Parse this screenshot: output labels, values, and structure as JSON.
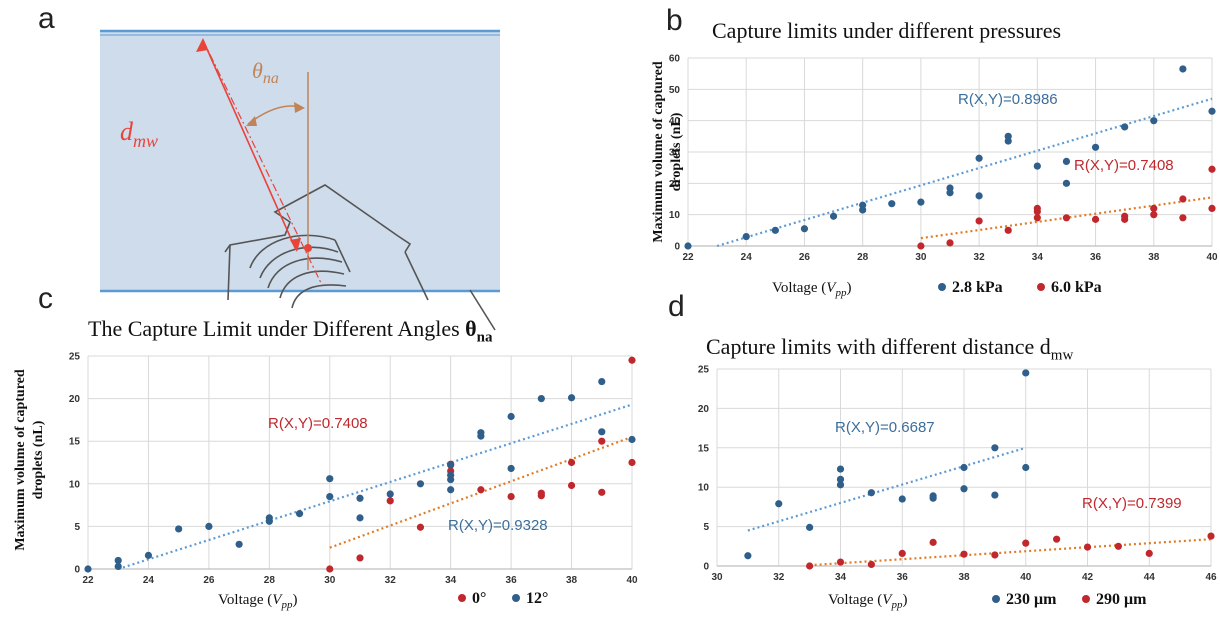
{
  "panels": {
    "a": {
      "letter": "a",
      "distance_label": "d",
      "distance_sub": "mw",
      "angle_label": "θ",
      "angle_sub": "na"
    },
    "b": {
      "letter": "b"
    },
    "c": {
      "letter": "c"
    },
    "d": {
      "letter": "d"
    }
  },
  "colors": {
    "blue": "#2f5f8a",
    "red": "#c0282d",
    "blue_trend": "#5b9bd5",
    "orange_trend": "#e07b26",
    "grid": "#d9d9d9",
    "r_blue": "#3b6e9c",
    "r_red": "#c0282d"
  },
  "chart_data": [
    {
      "id": "b",
      "type": "scatter",
      "title": "Capture limits under different pressures",
      "xlabel": "Voltage (Vpp)",
      "ylabel_lines": [
        "Maximum volume of captured",
        "droplets (nL)"
      ],
      "xlim": [
        22,
        40
      ],
      "ylim": [
        0,
        60
      ],
      "xticks": [
        "22",
        "24",
        "26",
        "28",
        "30",
        "32",
        "34",
        "36",
        "38",
        "40"
      ],
      "yticks": [
        "0",
        "10",
        "20",
        "30",
        "40",
        "50",
        "60"
      ],
      "series": [
        {
          "name": "2.8 kPa",
          "color": "#2f5f8a",
          "points": [
            [
              22,
              0
            ],
            [
              24,
              3
            ],
            [
              25,
              5
            ],
            [
              26,
              5.5
            ],
            [
              27,
              9.5
            ],
            [
              28,
              11.5
            ],
            [
              28,
              13
            ],
            [
              29,
              13.5
            ],
            [
              30,
              14
            ],
            [
              31,
              17
            ],
            [
              31,
              18.5
            ],
            [
              32,
              16
            ],
            [
              32,
              28
            ],
            [
              33,
              33.5
            ],
            [
              33,
              35
            ],
            [
              34,
              25.5
            ],
            [
              35,
              20
            ],
            [
              35,
              27
            ],
            [
              36,
              31.5
            ],
            [
              37,
              38
            ],
            [
              38,
              40
            ],
            [
              39,
              56.5
            ],
            [
              40,
              43
            ]
          ],
          "trend": [
            [
              23,
              0
            ],
            [
              40,
              47
            ]
          ],
          "r_label": "R(X,Y)=0.8986"
        },
        {
          "name": "6.0 kPa",
          "color": "#c0282d",
          "points": [
            [
              30,
              0
            ],
            [
              31,
              1
            ],
            [
              32,
              8
            ],
            [
              33,
              5
            ],
            [
              34,
              9
            ],
            [
              34,
              11
            ],
            [
              34,
              12
            ],
            [
              35,
              9
            ],
            [
              36,
              8.5
            ],
            [
              37,
              8.5
            ],
            [
              37,
              9.5
            ],
            [
              38,
              10
            ],
            [
              38,
              12
            ],
            [
              39,
              9
            ],
            [
              39,
              15
            ],
            [
              40,
              12
            ],
            [
              40,
              24.5
            ]
          ],
          "trend": [
            [
              30,
              2.5
            ],
            [
              40,
              15.5
            ]
          ],
          "r_label": "R(X,Y)=0.7408"
        }
      ]
    },
    {
      "id": "c",
      "type": "scatter",
      "title": "The Capture Limit under Different Angles θna",
      "xlabel": "Voltage (Vpp)",
      "ylabel_lines": [
        "Maximum volume  of captured",
        "droplets (nL)"
      ],
      "xlim": [
        22,
        40
      ],
      "ylim": [
        0,
        25
      ],
      "xticks": [
        "22",
        "24",
        "26",
        "28",
        "30",
        "32",
        "34",
        "36",
        "38",
        "40"
      ],
      "yticks": [
        "0",
        "5",
        "10",
        "15",
        "20",
        "25"
      ],
      "series": [
        {
          "name": "0°",
          "color": "#c0282d",
          "points": [
            [
              30,
              0
            ],
            [
              31,
              1.3
            ],
            [
              32,
              8
            ],
            [
              33,
              4.9
            ],
            [
              34,
              11.5
            ],
            [
              34,
              12.3
            ],
            [
              35,
              9.3
            ],
            [
              36,
              8.5
            ],
            [
              37,
              8.6
            ],
            [
              37,
              8.9
            ],
            [
              38,
              9.8
            ],
            [
              38,
              12.5
            ],
            [
              39,
              9
            ],
            [
              39,
              15
            ],
            [
              40,
              12.5
            ],
            [
              40,
              24.5
            ]
          ],
          "trend": [
            [
              30,
              2.5
            ],
            [
              40,
              15.5
            ]
          ],
          "r_label": "R(X,Y)=0.7408"
        },
        {
          "name": "12°",
          "color": "#2f5f8a",
          "points": [
            [
              22,
              0
            ],
            [
              23,
              0.3
            ],
            [
              23,
              1
            ],
            [
              24,
              1.6
            ],
            [
              25,
              4.7
            ],
            [
              26,
              5
            ],
            [
              27,
              2.9
            ],
            [
              28,
              5.6
            ],
            [
              28,
              6
            ],
            [
              29,
              6.5
            ],
            [
              30,
              8.5
            ],
            [
              30,
              10.6
            ],
            [
              31,
              6
            ],
            [
              31,
              8.3
            ],
            [
              32,
              8.8
            ],
            [
              33,
              10
            ],
            [
              34,
              9.3
            ],
            [
              34,
              10.5
            ],
            [
              34,
              11
            ],
            [
              34,
              12.2
            ],
            [
              35,
              15.6
            ],
            [
              35,
              16
            ],
            [
              36,
              11.8
            ],
            [
              36,
              17.9
            ],
            [
              37,
              20
            ],
            [
              38,
              20.1
            ],
            [
              39,
              16.1
            ],
            [
              39,
              22
            ],
            [
              40,
              15.2
            ]
          ],
          "trend": [
            [
              23,
              0
            ],
            [
              40,
              19.3
            ]
          ],
          "r_label": "R(X,Y)=0.9328"
        }
      ]
    },
    {
      "id": "d",
      "type": "scatter",
      "title": "Capture limits with different distance dmw",
      "xlabel": "Voltage (Vpp)",
      "ylabel_lines": [],
      "xlim": [
        30,
        46
      ],
      "ylim": [
        0,
        25
      ],
      "xticks": [
        "30",
        "32",
        "34",
        "36",
        "38",
        "40",
        "42",
        "44",
        "46"
      ],
      "yticks": [
        "0",
        "5",
        "10",
        "15",
        "20",
        "25"
      ],
      "series": [
        {
          "name": "230 μm",
          "color": "#2f5f8a",
          "points": [
            [
              31,
              1.3
            ],
            [
              32,
              7.9
            ],
            [
              33,
              4.9
            ],
            [
              34,
              10.3
            ],
            [
              34,
              11
            ],
            [
              34,
              12.3
            ],
            [
              35,
              9.3
            ],
            [
              36,
              8.5
            ],
            [
              37,
              8.6
            ],
            [
              37,
              8.9
            ],
            [
              38,
              9.8
            ],
            [
              38,
              12.5
            ],
            [
              39,
              9
            ],
            [
              39,
              15
            ],
            [
              40,
              12.5
            ],
            [
              40,
              24.5
            ]
          ],
          "trend": [
            [
              31,
              4.5
            ],
            [
              40,
              15
            ]
          ],
          "r_label": "R(X,Y)=0.6687"
        },
        {
          "name": "290 μm",
          "color": "#c0282d",
          "points": [
            [
              33,
              0
            ],
            [
              34,
              0.5
            ],
            [
              35,
              0.2
            ],
            [
              36,
              1.6
            ],
            [
              37,
              3
            ],
            [
              38,
              1.5
            ],
            [
              39,
              1.4
            ],
            [
              40,
              2.9
            ],
            [
              41,
              3.4
            ],
            [
              42,
              2.4
            ],
            [
              43,
              2.5
            ],
            [
              44,
              1.6
            ],
            [
              46,
              3.8
            ]
          ],
          "trend": [
            [
              33,
              0.1
            ],
            [
              46,
              3.4
            ]
          ],
          "r_label": "R(X,Y)=0.7399"
        }
      ]
    }
  ]
}
